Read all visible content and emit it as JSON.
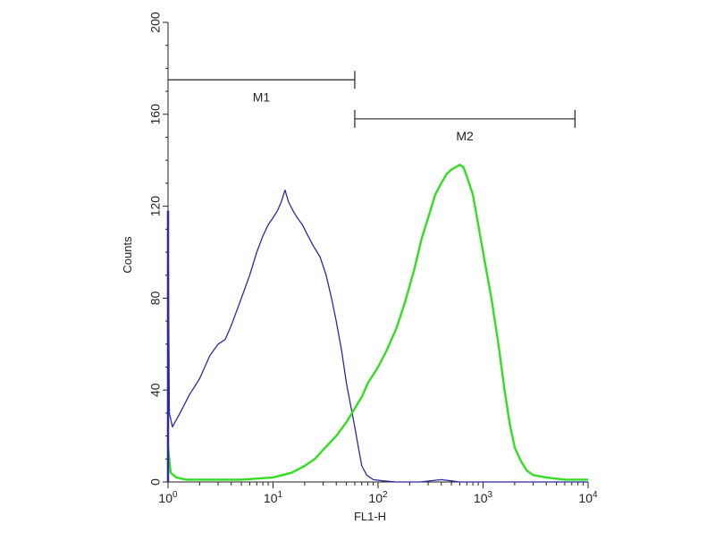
{
  "chart_data": {
    "type": "line",
    "title": "",
    "xlabel": "FL1-H",
    "ylabel": "Counts",
    "x_scale": "log",
    "xlim": [
      1,
      10000
    ],
    "ylim": [
      0,
      200
    ],
    "grid": false,
    "x_ticks": [
      {
        "base": "10",
        "exp": "0",
        "value": 1
      },
      {
        "base": "10",
        "exp": "1",
        "value": 10
      },
      {
        "base": "10",
        "exp": "2",
        "value": 100
      },
      {
        "base": "10",
        "exp": "3",
        "value": 1000
      },
      {
        "base": "10",
        "exp": "4",
        "value": 10000
      }
    ],
    "y_ticks": [
      "0",
      "40",
      "80",
      "120",
      "160",
      "200"
    ],
    "markers": [
      {
        "label": "M1",
        "x_start": 1,
        "x_end": 60,
        "y": 175
      },
      {
        "label": "M2",
        "x_start": 60,
        "x_end": 7500,
        "y": 158
      }
    ],
    "series": [
      {
        "color": "#2b2b9e",
        "points": [
          [
            1.0,
            118
          ],
          [
            1.03,
            30
          ],
          [
            1.1,
            24
          ],
          [
            1.3,
            30
          ],
          [
            1.6,
            38
          ],
          [
            2.0,
            45
          ],
          [
            2.5,
            55
          ],
          [
            3.0,
            60
          ],
          [
            3.5,
            62
          ],
          [
            4.0,
            68
          ],
          [
            5.0,
            80
          ],
          [
            6.0,
            90
          ],
          [
            7.0,
            100
          ],
          [
            8.0,
            107
          ],
          [
            9.0,
            112
          ],
          [
            10.0,
            115
          ],
          [
            11.0,
            118
          ],
          [
            12.0,
            122
          ],
          [
            13.0,
            127
          ],
          [
            14.0,
            122
          ],
          [
            15.5,
            118
          ],
          [
            17.0,
            115
          ],
          [
            19.0,
            112
          ],
          [
            21.0,
            108
          ],
          [
            24.0,
            103
          ],
          [
            28.0,
            98
          ],
          [
            32.0,
            90
          ],
          [
            36.0,
            80
          ],
          [
            40.0,
            70
          ],
          [
            45.0,
            57
          ],
          [
            50.0,
            43
          ],
          [
            55.0,
            33
          ],
          [
            60.0,
            24
          ],
          [
            65.0,
            15
          ],
          [
            70.0,
            7
          ],
          [
            78.0,
            3
          ],
          [
            90.0,
            1
          ],
          [
            110.0,
            0.5
          ],
          [
            150.0,
            0
          ],
          [
            250.0,
            0
          ],
          [
            400.0,
            1
          ],
          [
            600.0,
            0
          ],
          [
            1000.0,
            0
          ],
          [
            10000.0,
            0
          ]
        ]
      },
      {
        "color": "#33dd22",
        "points": [
          [
            1.0,
            15
          ],
          [
            1.06,
            4
          ],
          [
            1.2,
            2
          ],
          [
            1.5,
            1
          ],
          [
            2.0,
            1
          ],
          [
            3.0,
            1
          ],
          [
            5.0,
            1
          ],
          [
            10.0,
            2
          ],
          [
            15.0,
            4
          ],
          [
            20.0,
            7
          ],
          [
            25.0,
            10
          ],
          [
            30.0,
            14
          ],
          [
            40.0,
            20
          ],
          [
            50.0,
            26
          ],
          [
            60.0,
            32
          ],
          [
            70.0,
            37
          ],
          [
            80.0,
            43
          ],
          [
            100.0,
            50
          ],
          [
            120.0,
            57
          ],
          [
            150.0,
            67
          ],
          [
            180.0,
            78
          ],
          [
            220.0,
            92
          ],
          [
            260.0,
            106
          ],
          [
            300.0,
            115
          ],
          [
            350.0,
            125
          ],
          [
            400.0,
            130
          ],
          [
            450.0,
            134
          ],
          [
            500.0,
            136
          ],
          [
            550.0,
            137
          ],
          [
            600.0,
            138
          ],
          [
            650.0,
            137
          ],
          [
            700.0,
            133
          ],
          [
            800.0,
            125
          ],
          [
            900.0,
            112
          ],
          [
            1000.0,
            100
          ],
          [
            1200.0,
            80
          ],
          [
            1400.0,
            60
          ],
          [
            1600.0,
            40
          ],
          [
            1800.0,
            25
          ],
          [
            2000.0,
            15
          ],
          [
            2300.0,
            9
          ],
          [
            2600.0,
            5
          ],
          [
            3000.0,
            3
          ],
          [
            4000.0,
            2
          ],
          [
            6000.0,
            1
          ],
          [
            8000.0,
            1
          ],
          [
            10000.0,
            1
          ]
        ]
      }
    ]
  }
}
